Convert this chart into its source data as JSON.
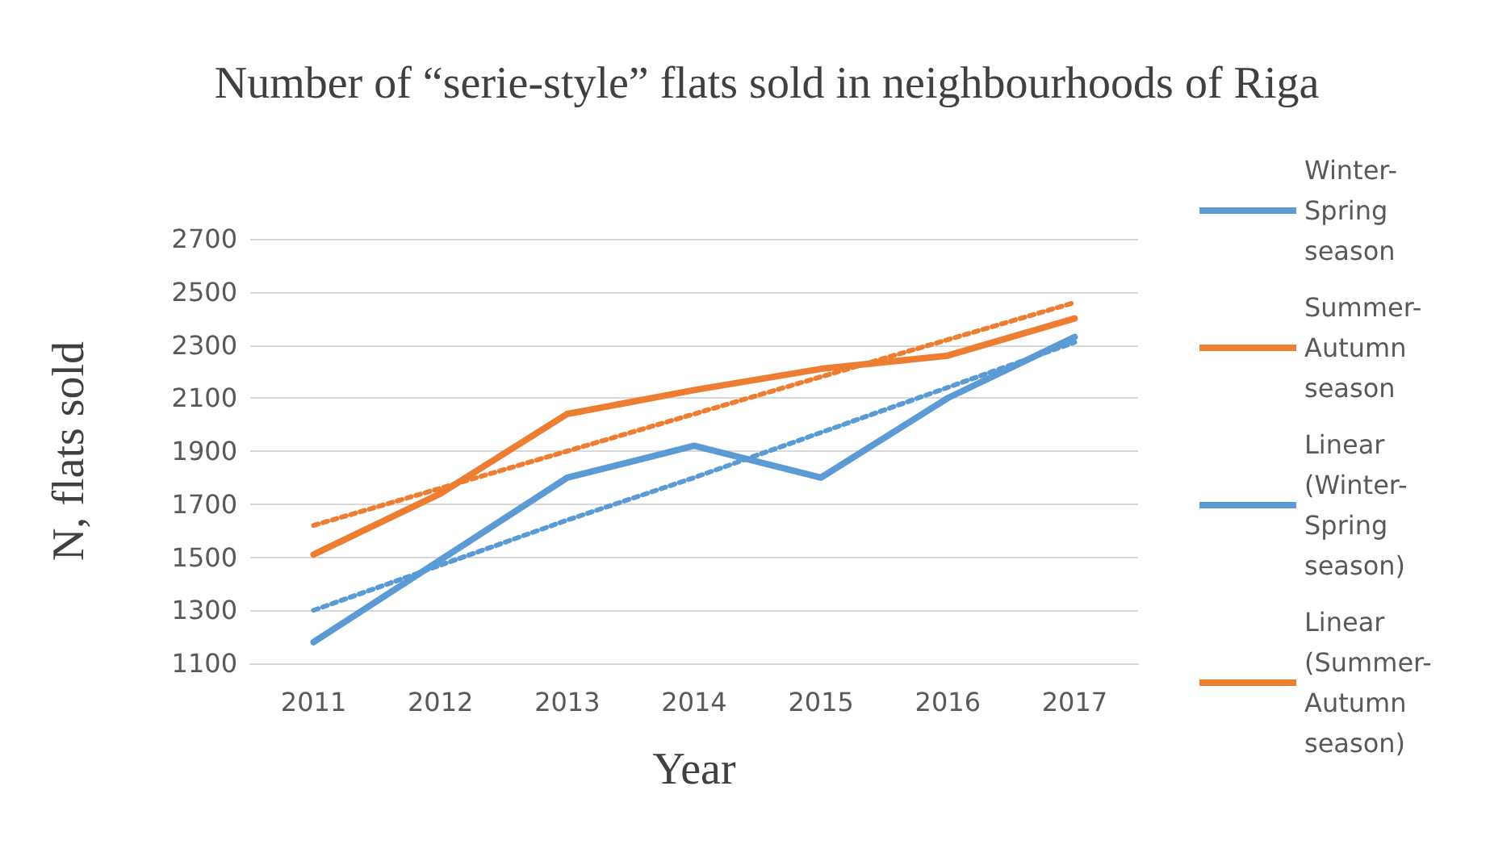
{
  "chart_data": {
    "type": "line",
    "title": "Number of “serie-style” flats sold in neighbourhoods of Riga",
    "xlabel": "Year",
    "ylabel": "N, flats sold",
    "categories": [
      "2011",
      "2012",
      "2013",
      "2014",
      "2015",
      "2016",
      "2017"
    ],
    "series": [
      {
        "name": "Winter-Spring season",
        "color": "#5b9bd5",
        "values": [
          1180,
          1490,
          1800,
          1920,
          1800,
          2100,
          2330
        ],
        "line_style": "solid"
      },
      {
        "name": "Summer-Autumn season",
        "color": "#ed7d31",
        "values": [
          1510,
          1740,
          2040,
          2130,
          2210,
          2260,
          2400
        ],
        "line_style": "solid"
      },
      {
        "name": "Linear (Winter-Spring season)",
        "color": "#5b9bd5",
        "values": [
          1300,
          1470,
          1640,
          1800,
          1970,
          2140,
          2310
        ],
        "line_style": "dotted"
      },
      {
        "name": "Linear (Summer-Autumn season)",
        "color": "#ed7d31",
        "values": [
          1620,
          1760,
          1900,
          2040,
          2180,
          2320,
          2460
        ],
        "line_style": "dotted"
      }
    ],
    "ylim": [
      1100,
      2700
    ],
    "yticks": [
      1100,
      1300,
      1500,
      1700,
      1900,
      2100,
      2300,
      2500,
      2700
    ],
    "grid": "y",
    "legend": "right",
    "marker": "none"
  }
}
